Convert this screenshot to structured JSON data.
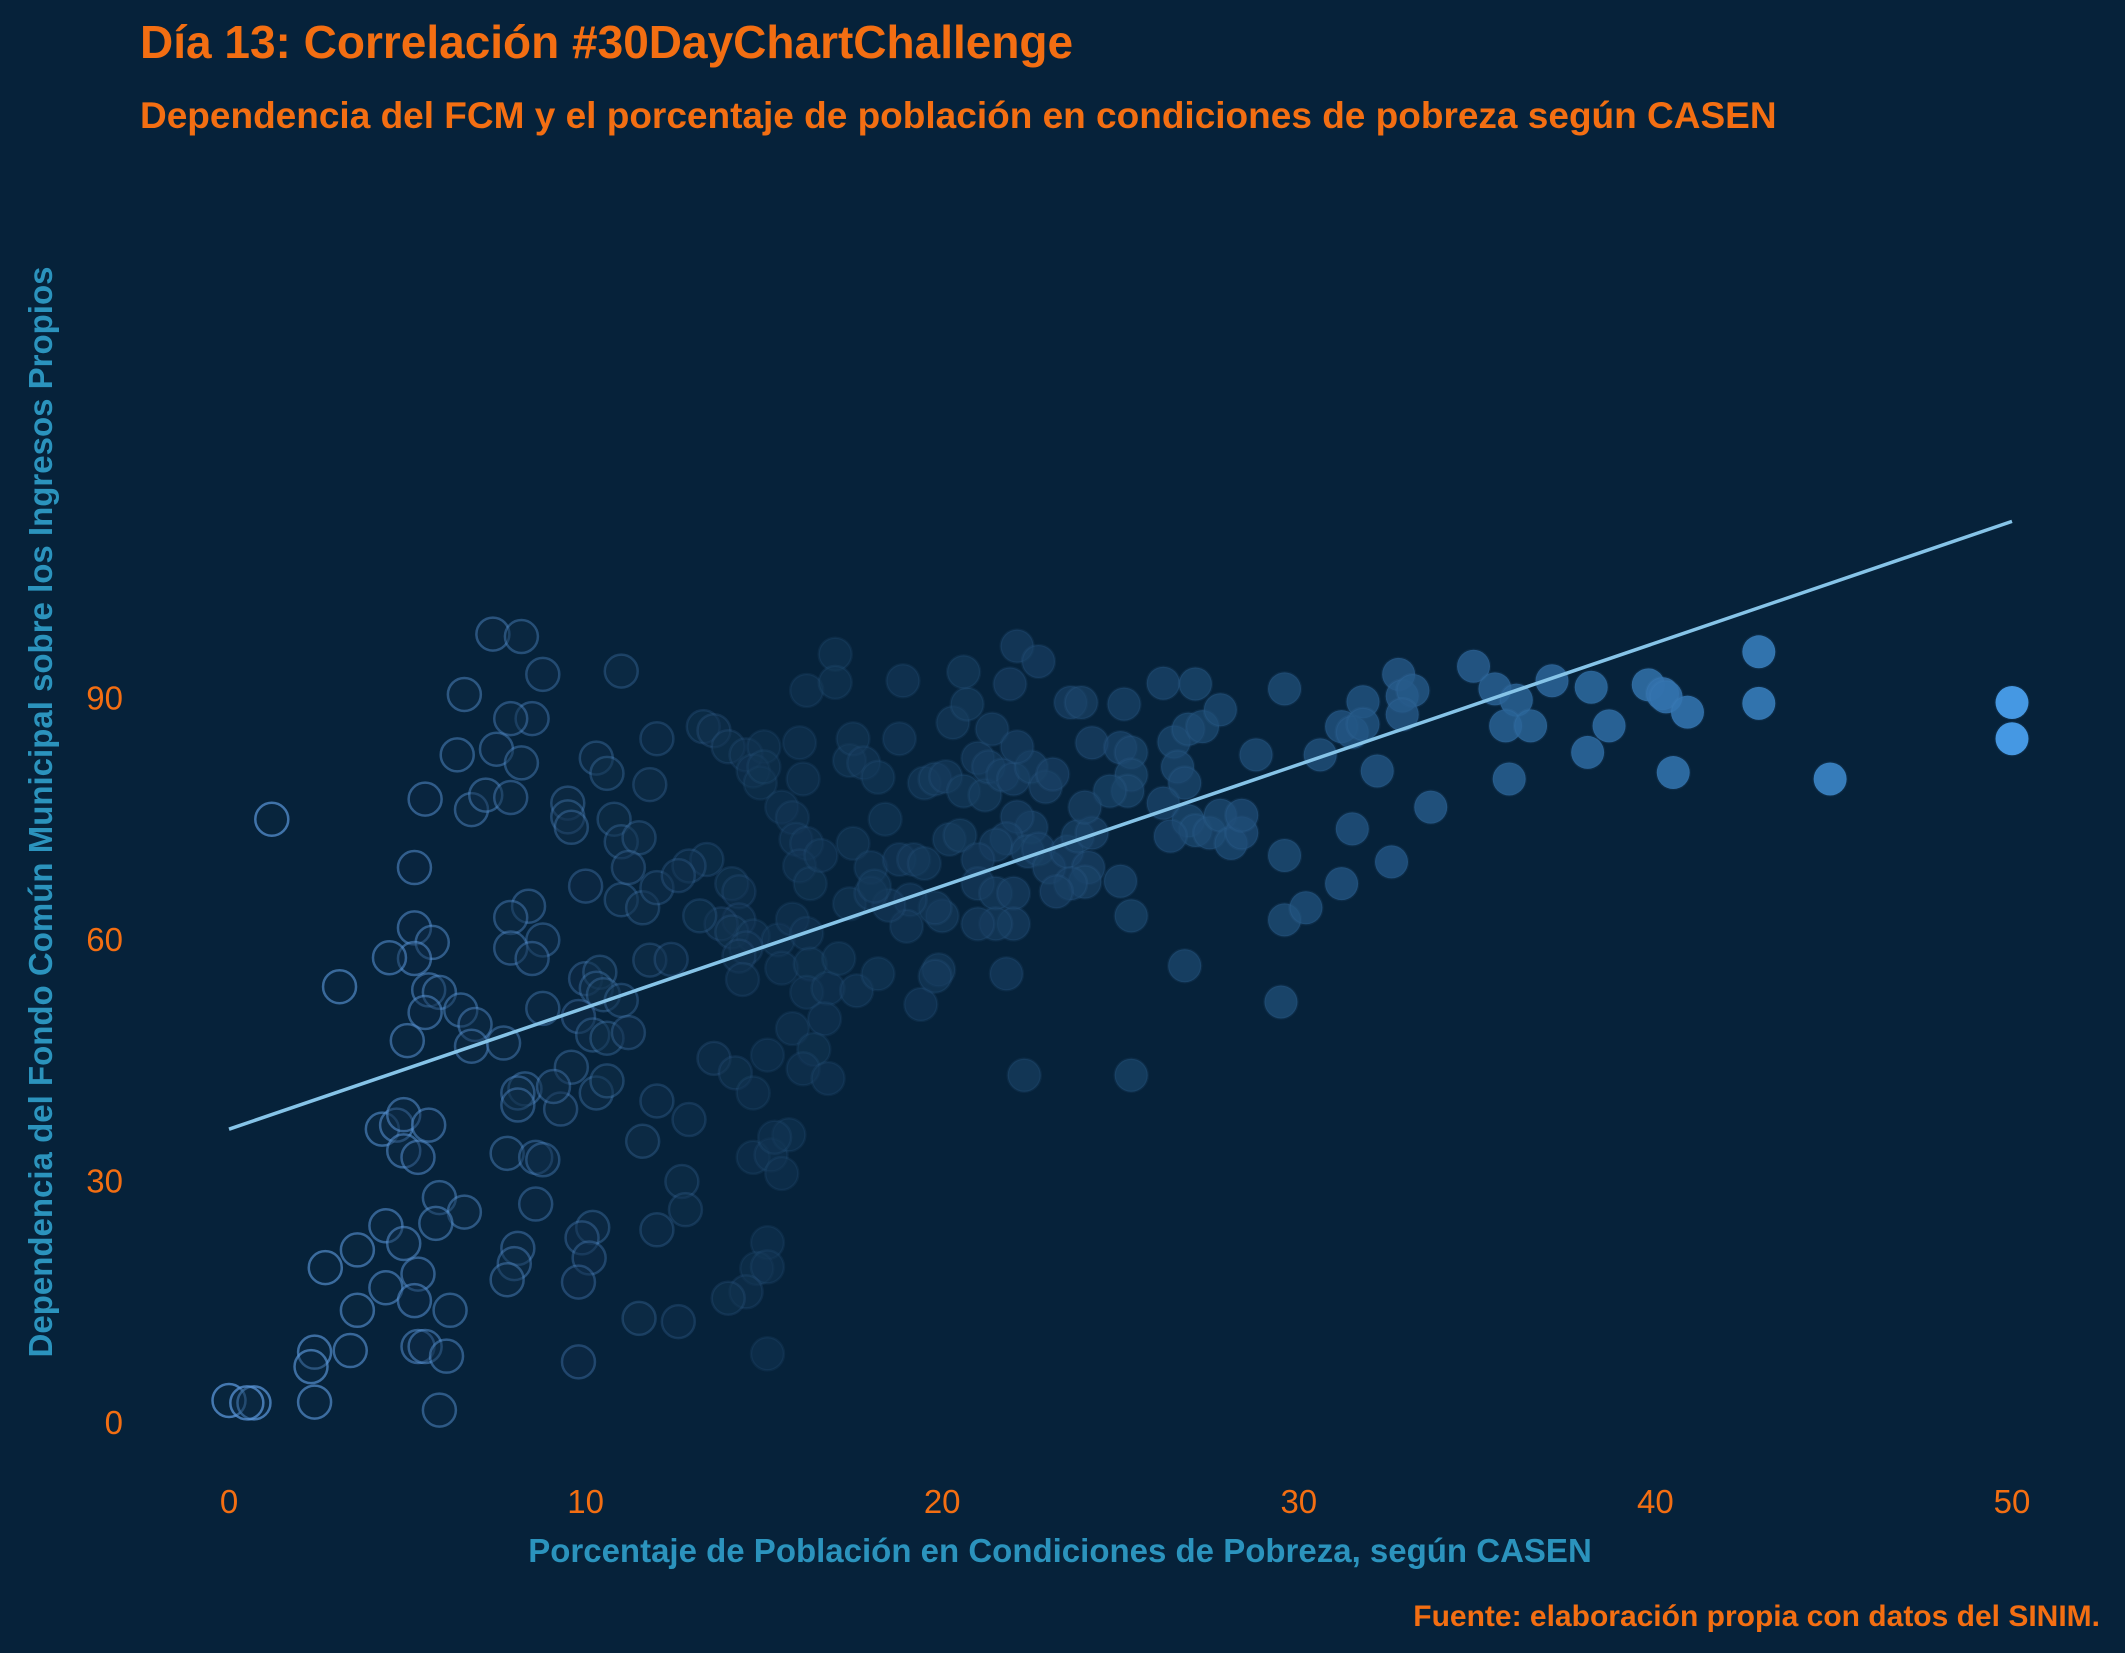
{
  "chart_data": {
    "type": "scatter",
    "title": "Día 13: Correlación #30DayChartChallenge",
    "subtitle": "Dependencia del FCM y el porcentaje de población en condiciones de pobreza según CASEN",
    "xlabel": "Porcentaje de Población en Condiciones de Pobreza, según CASEN",
    "ylabel": "Dependencia del Fondo Común Municipal sobre los Ingresos Propios",
    "caption": "Fuente: elaboración propia con datos del SINIM.",
    "xlim": [
      -2.5,
      52.5
    ],
    "ylim": [
      -7,
      121
    ],
    "x_ticks": [
      0,
      10,
      20,
      30,
      40,
      50
    ],
    "y_ticks": [
      0,
      30,
      60,
      90
    ],
    "grid": false,
    "legend": "none",
    "colors": {
      "background": "#06223a",
      "title": "#f36e12",
      "axis_title": "#2b93bd",
      "point_low": "#0e2b45",
      "point_high": "#4598e3",
      "point_outline": "#5a96d8",
      "trend_line": "#86c4e8"
    },
    "trend_line": {
      "x": [
        0,
        50
      ],
      "y": [
        36.5,
        112
      ]
    },
    "points": [
      [
        7.4,
        98
      ],
      [
        8.2,
        97.7
      ],
      [
        8.8,
        93
      ],
      [
        11,
        93.4
      ],
      [
        6.6,
        90.5
      ],
      [
        8.5,
        87.5
      ],
      [
        7.9,
        87.5
      ],
      [
        6.4,
        83
      ],
      [
        7.5,
        83.7
      ],
      [
        8.2,
        82
      ],
      [
        1.2,
        75
      ],
      [
        5.5,
        77.5
      ],
      [
        6.8,
        76.2
      ],
      [
        7.2,
        78
      ],
      [
        7.9,
        77.7
      ],
      [
        10.3,
        82.6
      ],
      [
        10.6,
        80.7
      ],
      [
        9.5,
        77
      ],
      [
        9.5,
        75.3
      ],
      [
        9.6,
        74
      ],
      [
        10.8,
        75
      ],
      [
        11,
        72.2
      ],
      [
        11.5,
        72.7
      ],
      [
        5.2,
        69
      ],
      [
        10,
        66.7
      ],
      [
        11,
        65
      ],
      [
        11.2,
        69
      ],
      [
        11.6,
        64
      ],
      [
        12,
        66.5
      ],
      [
        8.4,
        64.2
      ],
      [
        8.8,
        60
      ],
      [
        7.9,
        62.8
      ],
      [
        7.9,
        59
      ],
      [
        8.5,
        57.7
      ],
      [
        5.2,
        61.5
      ],
      [
        5.7,
        59.7
      ],
      [
        5.2,
        57.7
      ],
      [
        4.5,
        57.8
      ],
      [
        3.1,
        54.2
      ],
      [
        5.6,
        53.8
      ],
      [
        5.9,
        53.5
      ],
      [
        5.5,
        51
      ],
      [
        6.5,
        51.3
      ],
      [
        6.9,
        49.5
      ],
      [
        6.8,
        46.8
      ],
      [
        5,
        47.5
      ],
      [
        8.8,
        51.5
      ],
      [
        10,
        55.2
      ],
      [
        10.4,
        56
      ],
      [
        10.3,
        54
      ],
      [
        10.5,
        53.2
      ],
      [
        9.8,
        50.5
      ],
      [
        10.2,
        48.2
      ],
      [
        10.6,
        47.8
      ],
      [
        7.7,
        47.2
      ],
      [
        9.6,
        44.2
      ],
      [
        8.3,
        41.5
      ],
      [
        8.1,
        41
      ],
      [
        8.1,
        39.5
      ],
      [
        9.3,
        39
      ],
      [
        9.1,
        41.8
      ],
      [
        10.3,
        41
      ],
      [
        10.6,
        42.5
      ],
      [
        12,
        40
      ],
      [
        11.8,
        57.5
      ],
      [
        12.4,
        57.6
      ],
      [
        11,
        52.5
      ],
      [
        11.2,
        48.5
      ],
      [
        4.3,
        36.5
      ],
      [
        4.7,
        37
      ],
      [
        4.9,
        38.3
      ],
      [
        5.6,
        37
      ],
      [
        4.9,
        33.8
      ],
      [
        5.3,
        33
      ],
      [
        7.8,
        33.5
      ],
      [
        8.6,
        33
      ],
      [
        8.8,
        32.7
      ],
      [
        8.6,
        27.2
      ],
      [
        5.9,
        28
      ],
      [
        6.6,
        26.2
      ],
      [
        4.4,
        24.5
      ],
      [
        5.8,
        24.8
      ],
      [
        4.9,
        22.3
      ],
      [
        3.6,
        21.5
      ],
      [
        2.7,
        19.3
      ],
      [
        4.4,
        16.8
      ],
      [
        5.3,
        18.5
      ],
      [
        5.2,
        15.2
      ],
      [
        3.6,
        14
      ],
      [
        6.2,
        14
      ],
      [
        8.1,
        21.7
      ],
      [
        8,
        19.8
      ],
      [
        7.8,
        17.8
      ],
      [
        10.2,
        24.3
      ],
      [
        9.9,
        23
      ],
      [
        10.1,
        20.5
      ],
      [
        9.8,
        17.5
      ],
      [
        5.3,
        9.5
      ],
      [
        5.5,
        9.5
      ],
      [
        6.1,
        8.3
      ],
      [
        3.4,
        9
      ],
      [
        2.4,
        8.8
      ],
      [
        2.3,
        7
      ],
      [
        2.4,
        2.6
      ],
      [
        0,
        2.8
      ],
      [
        0.7,
        2.5
      ],
      [
        0.5,
        2.5
      ],
      [
        5.9,
        1.6
      ],
      [
        9.8,
        7.6
      ],
      [
        12,
        85
      ],
      [
        11.8,
        79.3
      ],
      [
        13.3,
        86.5
      ],
      [
        13.6,
        86
      ],
      [
        14,
        84
      ],
      [
        14.5,
        83
      ],
      [
        15,
        84
      ],
      [
        16,
        84.5
      ],
      [
        14.7,
        81
      ],
      [
        14.9,
        79.5
      ],
      [
        15,
        81.5
      ],
      [
        15.5,
        76.5
      ],
      [
        15.8,
        75.2
      ],
      [
        15.9,
        72.5
      ],
      [
        16.2,
        72
      ],
      [
        16,
        69.2
      ],
      [
        16.3,
        67
      ],
      [
        16.6,
        70.5
      ],
      [
        16.1,
        80
      ],
      [
        16.2,
        91
      ],
      [
        17,
        95.5
      ],
      [
        17,
        92
      ],
      [
        13.4,
        70
      ],
      [
        14.1,
        67
      ],
      [
        14.3,
        66
      ],
      [
        14.3,
        62.5
      ],
      [
        13.8,
        62
      ],
      [
        14.1,
        61
      ],
      [
        13.2,
        63
      ],
      [
        12.9,
        69.2
      ],
      [
        12.6,
        68
      ],
      [
        14.7,
        60.5
      ],
      [
        15.4,
        60
      ],
      [
        15.8,
        62.6
      ],
      [
        16.2,
        60.8
      ],
      [
        14.5,
        59
      ],
      [
        14.3,
        58
      ],
      [
        15.5,
        56.5
      ],
      [
        16.3,
        57
      ],
      [
        14.4,
        55.1
      ],
      [
        16.2,
        53.5
      ],
      [
        16.8,
        54
      ],
      [
        16.7,
        50.2
      ],
      [
        15.8,
        49
      ],
      [
        15.1,
        45.7
      ],
      [
        16.4,
        46.4
      ],
      [
        16.1,
        44
      ],
      [
        16.8,
        42.8
      ],
      [
        13.6,
        45.3
      ],
      [
        14.2,
        43.5
      ],
      [
        14.7,
        41
      ],
      [
        12.9,
        37.7
      ],
      [
        11.6,
        35
      ],
      [
        14.7,
        33
      ],
      [
        15.2,
        33.3
      ],
      [
        15.5,
        31
      ],
      [
        15.7,
        35.8
      ],
      [
        15.3,
        35.5
      ],
      [
        12.7,
        30
      ],
      [
        12.8,
        26.5
      ],
      [
        12,
        24
      ],
      [
        15.1,
        22.4
      ],
      [
        14.8,
        19.2
      ],
      [
        15.1,
        19.4
      ],
      [
        14.5,
        16.3
      ],
      [
        14,
        15.5
      ],
      [
        11.5,
        13
      ],
      [
        12.6,
        12.6
      ],
      [
        15.1,
        8.6
      ],
      [
        17.4,
        82.3
      ],
      [
        17.5,
        85
      ],
      [
        17.8,
        82
      ],
      [
        18.2,
        80.2
      ],
      [
        17.5,
        72
      ],
      [
        18,
        69
      ],
      [
        17.4,
        64.5
      ],
      [
        18.4,
        75
      ],
      [
        18.8,
        70
      ],
      [
        19.2,
        70
      ],
      [
        19.5,
        69.5
      ],
      [
        19.5,
        79.5
      ],
      [
        19.8,
        80
      ],
      [
        20.1,
        80.3
      ],
      [
        20.2,
        72.5
      ],
      [
        20.5,
        73
      ],
      [
        20.6,
        78.5
      ],
      [
        21.2,
        78
      ],
      [
        21,
        82.6
      ],
      [
        21.3,
        81.5
      ],
      [
        21.7,
        80.5
      ],
      [
        22,
        80
      ],
      [
        22.5,
        81.5
      ],
      [
        22.9,
        79
      ],
      [
        18.8,
        85
      ],
      [
        18.9,
        92.2
      ],
      [
        20.3,
        87
      ],
      [
        20.7,
        89.3
      ],
      [
        21.4,
        86.2
      ],
      [
        20.6,
        93.3
      ],
      [
        22.1,
        96.5
      ],
      [
        22.7,
        94.6
      ],
      [
        21.9,
        91.8
      ],
      [
        22.1,
        84
      ],
      [
        22.5,
        74
      ],
      [
        22.1,
        75.3
      ],
      [
        21.8,
        72.6
      ],
      [
        21.5,
        71.8
      ],
      [
        21,
        70
      ],
      [
        21,
        67
      ],
      [
        21.5,
        65.8
      ],
      [
        22,
        65.8
      ],
      [
        22.4,
        71
      ],
      [
        22.7,
        71.3
      ],
      [
        23,
        69
      ],
      [
        23.5,
        71
      ],
      [
        23.8,
        72.9
      ],
      [
        24.2,
        73.3
      ],
      [
        24.1,
        69
      ],
      [
        24,
        67.2
      ],
      [
        23.6,
        67
      ],
      [
        23.2,
        66
      ],
      [
        22,
        62
      ],
      [
        21.5,
        62
      ],
      [
        21,
        62
      ],
      [
        21.8,
        55.8
      ],
      [
        17.1,
        57.7
      ],
      [
        17.6,
        53.7
      ],
      [
        18.2,
        55.8
      ],
      [
        19.4,
        52
      ],
      [
        19.9,
        56.3
      ],
      [
        19.8,
        55.5
      ],
      [
        20,
        63
      ],
      [
        19.8,
        64
      ],
      [
        19.1,
        65
      ],
      [
        19,
        61.7
      ],
      [
        18.5,
        64.3
      ],
      [
        18,
        65.8
      ],
      [
        18.1,
        66.7
      ],
      [
        22.3,
        43.2
      ],
      [
        23.1,
        80.6
      ],
      [
        23.6,
        89.5
      ],
      [
        23.9,
        89.5
      ],
      [
        24.2,
        84.5
      ],
      [
        25,
        83.9
      ],
      [
        25.3,
        83.3
      ],
      [
        25.3,
        80.5
      ],
      [
        25.2,
        78.5
      ],
      [
        24.7,
        78.5
      ],
      [
        24,
        76.5
      ],
      [
        25.1,
        89.3
      ],
      [
        26.2,
        91.9
      ],
      [
        26.5,
        84.6
      ],
      [
        26.9,
        86.2
      ],
      [
        27.1,
        91.8
      ],
      [
        27.3,
        86.5
      ],
      [
        27.8,
        88.6
      ],
      [
        26.6,
        81.5
      ],
      [
        26.8,
        79.5
      ],
      [
        26.2,
        77
      ],
      [
        26.9,
        74.8
      ],
      [
        27.1,
        73.6
      ],
      [
        26.4,
        72.9
      ],
      [
        27.5,
        73.3
      ],
      [
        27.8,
        75.5
      ],
      [
        28.1,
        72
      ],
      [
        28.4,
        73.3
      ],
      [
        28.4,
        75.5
      ],
      [
        25,
        67.3
      ],
      [
        25.3,
        63
      ],
      [
        26.8,
        56.8
      ],
      [
        25.3,
        43.2
      ],
      [
        28.8,
        83
      ],
      [
        29.6,
        91.2
      ],
      [
        29.6,
        70.5
      ],
      [
        29.6,
        62.5
      ],
      [
        30.2,
        64
      ],
      [
        29.5,
        52.3
      ],
      [
        30.6,
        83
      ],
      [
        31.2,
        86.5
      ],
      [
        31.5,
        73.8
      ],
      [
        31.2,
        67
      ],
      [
        31.8,
        89.6
      ],
      [
        31.5,
        85.8
      ],
      [
        31.8,
        86.8
      ],
      [
        32.2,
        81
      ],
      [
        32.6,
        69.7
      ],
      [
        32.8,
        93
      ],
      [
        32.9,
        90.3
      ],
      [
        33.2,
        91
      ],
      [
        32.9,
        88
      ],
      [
        33.7,
        76.5
      ],
      [
        34.9,
        94
      ],
      [
        35.5,
        91.2
      ],
      [
        36.1,
        89.8
      ],
      [
        35.8,
        86.6
      ],
      [
        36.5,
        86.6
      ],
      [
        35.9,
        80
      ],
      [
        37.1,
        92.2
      ],
      [
        38.1,
        83.3
      ],
      [
        38.2,
        91.4
      ],
      [
        38.7,
        86.6
      ],
      [
        39.8,
        91.7
      ],
      [
        40.2,
        90.6
      ],
      [
        40.3,
        90.2
      ],
      [
        40.9,
        88.3
      ],
      [
        40.5,
        80.8
      ],
      [
        42.9,
        95.8
      ],
      [
        42.9,
        89.4
      ],
      [
        44.9,
        80
      ],
      [
        50,
        89.5
      ],
      [
        50,
        85
      ]
    ]
  }
}
